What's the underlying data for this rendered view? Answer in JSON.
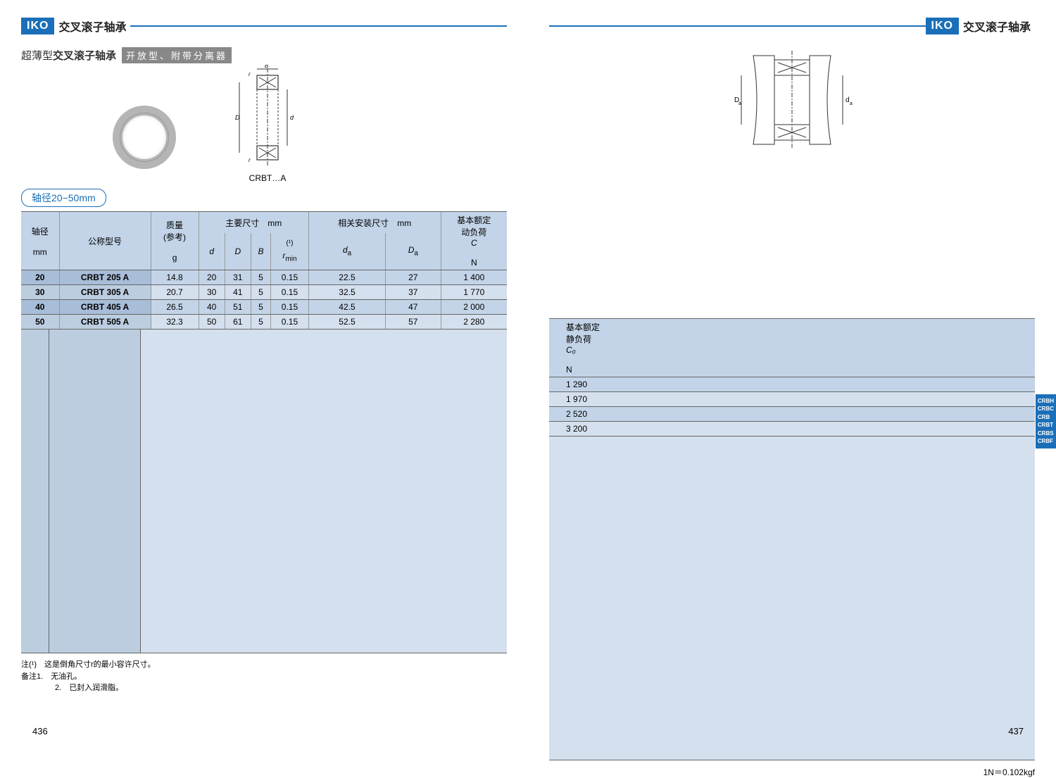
{
  "brand": "IKO",
  "category": "交叉滚子轴承",
  "subtitle_prefix": "超薄型",
  "subtitle_bold": "交叉滚子轴承",
  "badge": "开放型、附带分离器",
  "diagram_label": "CRBT…A",
  "range_label": "轴径20−50mm",
  "left_headers": {
    "shaft": "轴径",
    "shaft_unit": "mm",
    "model": "公称型号",
    "mass": "质量",
    "mass_ref": "(参考)",
    "mass_unit": "g",
    "main_dims": "主要尺寸",
    "main_dims_unit": "mm",
    "d": "d",
    "D_cap": "D",
    "B": "B",
    "rmin": "r",
    "rmin_sub": "min",
    "rmin_sup": "(¹)",
    "mount_dims": "相关安装尺寸",
    "mount_dims_unit": "mm",
    "da": "d",
    "da_sub": "a",
    "Da": "D",
    "Da_sub": "a",
    "dyn_load": "基本额定",
    "dyn_load2": "动负荷",
    "C": "C",
    "C_unit": "N"
  },
  "right_headers": {
    "stat_load": "基本额定",
    "stat_load2": "静负荷",
    "C0": "C₀",
    "C0_unit": "N"
  },
  "rows": [
    {
      "shaft": "20",
      "model": "CRBT 205 A",
      "mass": "14.8",
      "d": "20",
      "D": "31",
      "B": "5",
      "rmin": "0.15",
      "da": "22.5",
      "Da": "27",
      "C": "1 400",
      "C0": "1 290"
    },
    {
      "shaft": "30",
      "model": "CRBT 305 A",
      "mass": "20.7",
      "d": "30",
      "D": "41",
      "B": "5",
      "rmin": "0.15",
      "da": "32.5",
      "Da": "37",
      "C": "1 770",
      "C0": "1 970"
    },
    {
      "shaft": "40",
      "model": "CRBT 405 A",
      "mass": "26.5",
      "d": "40",
      "D": "51",
      "B": "5",
      "rmin": "0.15",
      "da": "42.5",
      "Da": "47",
      "C": "2 000",
      "C0": "2 520"
    },
    {
      "shaft": "50",
      "model": "CRBT 505 A",
      "mass": "32.3",
      "d": "50",
      "D": "61",
      "B": "5",
      "rmin": "0.15",
      "da": "52.5",
      "Da": "57",
      "C": "2 280",
      "C0": "3 200"
    }
  ],
  "notes": {
    "n1_label": "注(¹)",
    "n1": "这是倒角尺寸r的最小容许尺寸。",
    "rem_label": "备注1.",
    "rem1": "无油孔。",
    "rem2_label": "2.",
    "rem2": "已封入润滑脂。"
  },
  "conversion": "1N＝0.102kgf",
  "page_left": "436",
  "page_right": "437",
  "side_tabs": [
    "CRBH",
    "CRBC",
    "CRB",
    "CRBT",
    "CRBS",
    "CRBF"
  ],
  "colors": {
    "brand_blue": "#1a6fb8",
    "header_bg": "#c3d4e8",
    "row_light": "#d5e0ee",
    "model_col_even": "#a8bdd8",
    "model_col_odd": "#bccde0"
  }
}
